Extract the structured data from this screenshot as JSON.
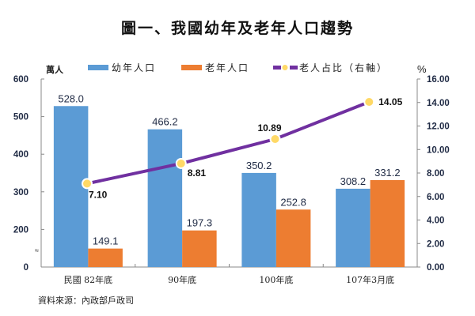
{
  "chart_data": {
    "type": "bar",
    "title": "圖一、我國幼年及老年人口趨勢",
    "left_unit": "萬人",
    "right_unit": "%",
    "categories": [
      "民國 82年底",
      "90年底",
      "100年底",
      "107年3月底"
    ],
    "left_axis": {
      "ticks": [
        "0",
        "200",
        "300",
        "400",
        "500",
        "600"
      ],
      "break_symbol": "≈",
      "ylim": [
        100,
        600
      ]
    },
    "right_axis": {
      "ticks": [
        "0.00",
        "2.00",
        "4.00",
        "6.00",
        "8.00",
        "10.00",
        "12.00",
        "14.00",
        "16.00"
      ],
      "ylim": [
        0,
        16
      ]
    },
    "series": [
      {
        "name": "幼年人口",
        "type": "bar",
        "axis": "left",
        "color": "#5b9bd5",
        "values": [
          528.0,
          466.2,
          350.2,
          308.2
        ],
        "labels": [
          "528.0",
          "466.2",
          "350.2",
          "308.2"
        ]
      },
      {
        "name": "老年人口",
        "type": "bar",
        "axis": "left",
        "color": "#ed7d31",
        "values": [
          149.1,
          197.3,
          252.8,
          331.2
        ],
        "labels": [
          "149.1",
          "197.3",
          "252.8",
          "331.2"
        ]
      },
      {
        "name": "老人占比（右軸）",
        "type": "line",
        "axis": "right",
        "color": "#7030a0",
        "marker_color": "#ffd966",
        "values": [
          7.1,
          8.81,
          10.89,
          14.05
        ],
        "labels": [
          "7.10",
          "8.81",
          "10.89",
          "14.05"
        ]
      }
    ],
    "legend_position": "top",
    "grid": false,
    "source": "資料來源：內政部戶政司"
  }
}
